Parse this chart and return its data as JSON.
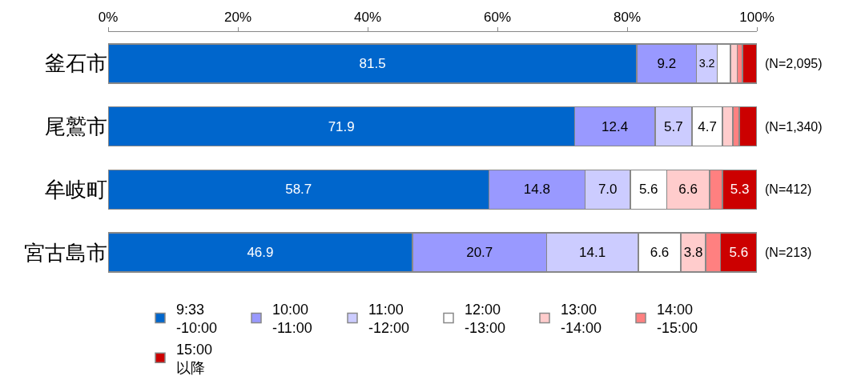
{
  "chart_data": {
    "type": "bar",
    "orientation": "horizontal",
    "stacked": true,
    "categories": [
      "釜石市",
      "尾鷲市",
      "牟岐町",
      "宮古島市"
    ],
    "series": [
      {
        "name": "9:33\n-10:00",
        "color": "#0066cc",
        "values": [
          81.5,
          71.9,
          58.7,
          46.9
        ],
        "value_labels": [
          "81.5",
          "71.9",
          "58.7",
          "46.9"
        ]
      },
      {
        "name": "10:00\n-11:00",
        "color": "#9999ff",
        "values": [
          9.2,
          12.4,
          14.8,
          20.7
        ],
        "value_labels": [
          "9.2",
          "12.4",
          "14.8",
          "20.7"
        ]
      },
      {
        "name": "11:00\n-12:00",
        "color": "#ccccff",
        "values": [
          3.2,
          5.7,
          7.0,
          14.1
        ],
        "value_labels": [
          "3.2",
          "5.7",
          "7.0",
          "14.1"
        ]
      },
      {
        "name": "12:00\n-13:00",
        "color": "#ffffff",
        "values": [
          2.0,
          4.7,
          5.6,
          6.6
        ],
        "value_labels": [
          null,
          "4.7",
          "5.6",
          "6.6"
        ]
      },
      {
        "name": "13:00\n-14:00",
        "color": "#ffcccc",
        "values": [
          1.1,
          1.6,
          6.6,
          3.8
        ],
        "value_labels": [
          null,
          null,
          "6.6",
          "3.8"
        ]
      },
      {
        "name": "14:00\n-15:00",
        "color": "#ff8080",
        "values": [
          0.8,
          1.0,
          2.0,
          2.3
        ],
        "value_labels": [
          null,
          null,
          null,
          null
        ]
      },
      {
        "name": "15:00\n以降",
        "color": "#cc0000",
        "values": [
          2.2,
          2.7,
          5.3,
          5.6
        ],
        "value_labels": [
          null,
          null,
          "5.3",
          "5.6"
        ]
      }
    ],
    "xlim": [
      0,
      100
    ],
    "xticks": [
      {
        "value": 0,
        "label": "0%"
      },
      {
        "value": 20,
        "label": "20%"
      },
      {
        "value": 40,
        "label": "40%"
      },
      {
        "value": 60,
        "label": "60%"
      },
      {
        "value": 80,
        "label": "80%"
      },
      {
        "value": 100,
        "label": "100%"
      }
    ],
    "annotations": [
      "(N=2,095)",
      "(N=1,340)",
      "(N=412)",
      "(N=213)"
    ],
    "legend": "bottom"
  }
}
